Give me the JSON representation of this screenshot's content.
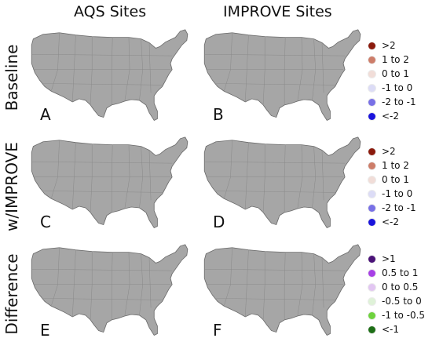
{
  "columns": [
    "AQS Sites",
    "IMPROVE Sites"
  ],
  "rows": [
    "Baseline",
    "w/IMPROVE",
    "Difference"
  ],
  "panels": [
    "A",
    "B",
    "C",
    "D",
    "E",
    "F"
  ],
  "legend_bias": {
    "items": [
      {
        "label": ">2",
        "color": "#8b1a0c"
      },
      {
        "label": "1 to 2",
        "color": "#cd7d69"
      },
      {
        "label": "0 to 1",
        "color": "#f1ddd8"
      },
      {
        "label": "-1 to 0",
        "color": "#dcdcf6"
      },
      {
        "label": "-2 to -1",
        "color": "#7870e6"
      },
      {
        "label": "<-2",
        "color": "#1a14dc"
      }
    ]
  },
  "legend_diff": {
    "items": [
      {
        "label": ">1",
        "color": "#4a1278"
      },
      {
        "label": "0.5 to 1",
        "color": "#a740e6"
      },
      {
        "label": "0 to 0.5",
        "color": "#e2c6f2"
      },
      {
        "label": "-0.5 to 0",
        "color": "#dff2d8"
      },
      {
        "label": "-1 to -0.5",
        "color": "#6ed23e"
      },
      {
        "label": "<-1",
        "color": "#1d6e16"
      }
    ]
  },
  "map_colors": {
    "land": "#a6a6a6",
    "border": "#6a6a6a"
  }
}
